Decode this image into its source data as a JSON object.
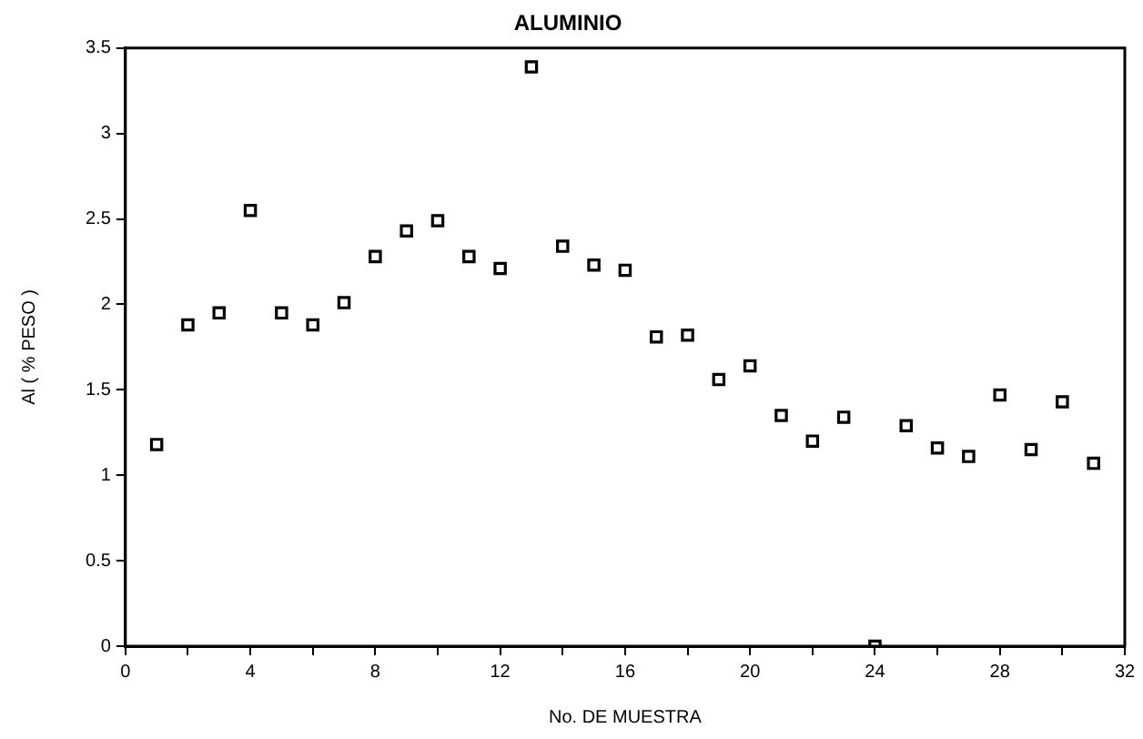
{
  "chart_data": {
    "type": "scatter",
    "title": "ALUMINIO",
    "xlabel": "No. DE MUESTRA",
    "ylabel": "Al ( % PESO )",
    "x": [
      1,
      2,
      3,
      4,
      5,
      6,
      7,
      8,
      9,
      10,
      11,
      12,
      13,
      14,
      15,
      16,
      17,
      18,
      19,
      20,
      21,
      22,
      23,
      24,
      25,
      26,
      27,
      28,
      29,
      30,
      31
    ],
    "series": [
      {
        "color": "#000000",
        "values": [
          1.18,
          1.88,
          1.95,
          2.55,
          1.95,
          1.88,
          2.01,
          2.28,
          2.43,
          2.49,
          2.28,
          2.21,
          3.39,
          2.34,
          2.23,
          2.2,
          1.81,
          1.82,
          1.56,
          1.64,
          1.35,
          1.2,
          1.34,
          0,
          1.29,
          1.16,
          1.11,
          1.47,
          1.15,
          1.43,
          1.07
        ]
      }
    ],
    "xlim": [
      0,
      32
    ],
    "xticks": [
      0,
      {
        "value": 2,
        "label": null
      },
      4,
      {
        "value": 6,
        "label": null
      },
      8,
      {
        "value": 10,
        "label": null
      },
      12,
      {
        "value": 14,
        "label": null
      },
      16,
      {
        "value": 18,
        "label": null
      },
      20,
      {
        "value": 22,
        "label": null
      },
      24,
      {
        "value": 26,
        "label": null
      },
      28,
      {
        "value": 30,
        "label": null
      },
      32
    ],
    "ylim": [
      0,
      3.5
    ],
    "yticks": [
      0,
      0.5,
      1,
      1.5,
      2,
      2.5,
      3,
      3.5
    ],
    "grid": false,
    "legend": false,
    "marker": "square"
  }
}
